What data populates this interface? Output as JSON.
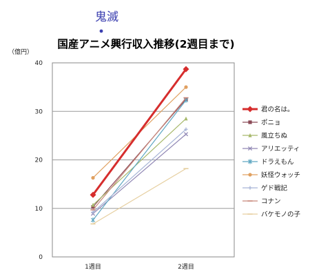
{
  "annotation": "鬼滅",
  "chart_data": {
    "type": "line",
    "title": "国産アニメ興行収入推移(2週目まで)",
    "unit_label": "（億円）",
    "xlabel": "",
    "ylabel": "",
    "categories": [
      "1週目",
      "2週目"
    ],
    "ylim": [
      0,
      40
    ],
    "yticks": [
      0,
      10,
      20,
      30,
      40
    ],
    "grid": true,
    "legend_position": "right",
    "series": [
      {
        "name": "君の名は。",
        "values": [
          12.8,
          38.7
        ],
        "color": "#d62d2d",
        "marker": "diamond",
        "emphasis": true
      },
      {
        "name": "ポニョ",
        "values": [
          10.3,
          32.5
        ],
        "color": "#8b4a57",
        "marker": "square"
      },
      {
        "name": "風立ちぬ",
        "values": [
          10.7,
          28.5
        ],
        "color": "#a6b86a",
        "marker": "triangle"
      },
      {
        "name": "アリエッティ",
        "values": [
          8.9,
          25.3
        ],
        "color": "#9188b5",
        "marker": "x"
      },
      {
        "name": "ドラえもん",
        "values": [
          7.6,
          32.3
        ],
        "color": "#5fa7c2",
        "marker": "star"
      },
      {
        "name": "妖怪ウォッチ",
        "values": [
          16.3,
          35.0
        ],
        "color": "#e0a060",
        "marker": "circle"
      },
      {
        "name": "ゲド戦記",
        "values": [
          9.2,
          26.3
        ],
        "color": "#a7b4d6",
        "marker": "plus"
      },
      {
        "name": "コナン",
        "values": [
          9.7,
          32.8
        ],
        "color": "#c8877a",
        "marker": "dash"
      },
      {
        "name": "バケモノの子",
        "values": [
          6.8,
          18.2
        ],
        "color": "#e6cfa0",
        "marker": "dash"
      }
    ]
  }
}
